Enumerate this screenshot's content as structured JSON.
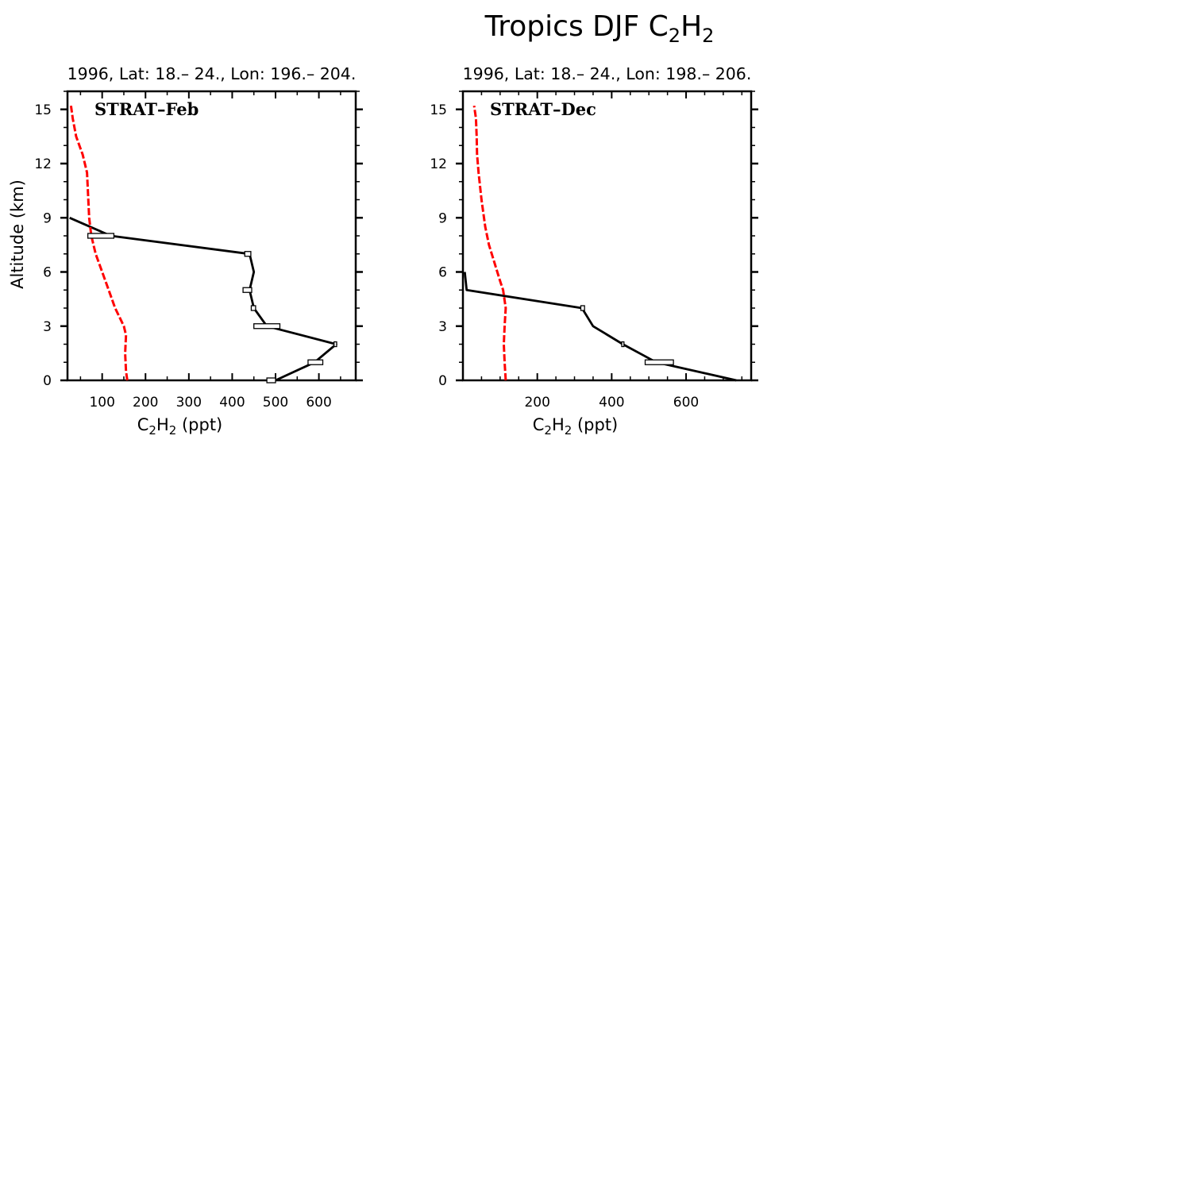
{
  "figure": {
    "title_main": "Tropics DJF C",
    "title_sub1": "2",
    "title_mid": "H",
    "title_sub2": "2"
  },
  "chart_data": [
    {
      "type": "line",
      "subtitle": "1996, Lat: 18.– 24., Lon: 196.– 204.",
      "panel_label": "STRAT–Feb",
      "xlabel": "C2H2 (ppt)",
      "ylabel": "Altitude (km)",
      "xlim": [
        20,
        685
      ],
      "ylim": [
        0,
        16
      ],
      "xticks": [
        100,
        200,
        300,
        400,
        500,
        600
      ],
      "yticks": [
        0,
        3,
        6,
        9,
        12,
        15
      ],
      "series": [
        {
          "color": "#000000",
          "style": "solid",
          "x": [
            500,
            590,
            640,
            480,
            450,
            440,
            450,
            440,
            120,
            25
          ],
          "y": [
            0,
            1,
            2,
            3,
            4,
            5,
            6,
            7,
            8,
            9
          ]
        },
        {
          "color": "#ff0000",
          "style": "dashed",
          "x": [
            158,
            155,
            153,
            155,
            150,
            130,
            115,
            100,
            85,
            75,
            70,
            68,
            65,
            55,
            40,
            32,
            28
          ],
          "y": [
            0,
            0.5,
            1.5,
            2.5,
            3,
            4,
            5,
            6,
            7,
            8,
            9,
            10,
            11.5,
            12.5,
            13.5,
            14.5,
            15.2
          ]
        }
      ],
      "error_bars": [
        {
          "y": 0,
          "x": 490,
          "half_width": 10
        },
        {
          "y": 1,
          "x": 592,
          "half_width": 17
        },
        {
          "y": 2,
          "x": 638,
          "half_width": 3
        },
        {
          "y": 3,
          "x": 480,
          "half_width": 30
        },
        {
          "y": 4,
          "x": 449,
          "half_width": 5
        },
        {
          "y": 5,
          "x": 435,
          "half_width": 10
        },
        {
          "y": 7,
          "x": 436,
          "half_width": 7
        },
        {
          "y": 8,
          "x": 97,
          "half_width": 30
        }
      ]
    },
    {
      "type": "line",
      "subtitle": "1996, Lat: 18.– 24., Lon: 198.– 206.",
      "panel_label": "STRAT–Dec",
      "xlabel": "C2H2 (ppt)",
      "ylabel": "",
      "xlim": [
        0,
        775
      ],
      "ylim": [
        0,
        16
      ],
      "xticks": [
        200,
        400,
        600
      ],
      "yticks": [
        0,
        3,
        6,
        9,
        12,
        15
      ],
      "series": [
        {
          "color": "#000000",
          "style": "solid",
          "x": [
            735,
            520,
            430,
            350,
            320,
            10,
            5
          ],
          "y": [
            0,
            1,
            2,
            3,
            4,
            5,
            6
          ]
        },
        {
          "color": "#ff0000",
          "style": "dashed",
          "x": [
            115,
            112,
            110,
            112,
            115,
            108,
            100,
            85,
            70,
            60,
            50,
            42,
            38,
            37,
            35,
            30
          ],
          "y": [
            0,
            1,
            2,
            3,
            4,
            5,
            5.5,
            6.5,
            7.5,
            8.5,
            10,
            11.5,
            12.5,
            13.5,
            14.5,
            15.2
          ]
        }
      ],
      "error_bars": [
        {
          "y": 1,
          "x": 528,
          "half_width": 38
        },
        {
          "y": 2,
          "x": 430,
          "half_width": 3
        },
        {
          "y": 4,
          "x": 322,
          "half_width": 5
        }
      ]
    }
  ]
}
